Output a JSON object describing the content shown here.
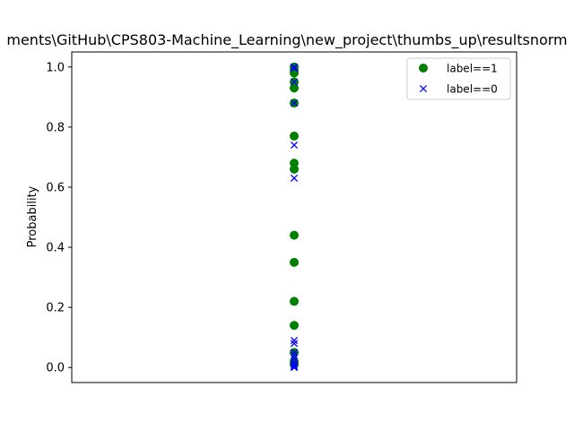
{
  "chart_data": {
    "type": "scatter",
    "title": "ments\\GitHub\\CPS803-Machine_Learning\\new_project\\thumbs_up\\resultsnorm",
    "xlabel": "",
    "ylabel": "Probability",
    "ylim": [
      -0.05,
      1.05
    ],
    "yticks": [
      "0.0",
      "0.2",
      "0.4",
      "0.6",
      "0.8",
      "1.0"
    ],
    "grid": false,
    "legend_position": "top-right",
    "series": [
      {
        "name": "label==1",
        "marker": "circle",
        "color": "#008000",
        "x": [
          0,
          0,
          0,
          0,
          0,
          0,
          0,
          0,
          0,
          0,
          0,
          0,
          0,
          0,
          0,
          0
        ],
        "y": [
          1.0,
          0.99,
          0.98,
          0.95,
          0.93,
          0.88,
          0.77,
          0.68,
          0.66,
          0.44,
          0.35,
          0.22,
          0.14,
          0.05,
          0.02,
          0.01
        ]
      },
      {
        "name": "label==0",
        "marker": "x",
        "color": "#0000ff",
        "x": [
          0,
          0,
          0,
          0,
          0,
          0,
          0,
          0,
          0,
          0,
          0,
          0,
          0,
          0,
          0,
          0
        ],
        "y": [
          1.0,
          0.995,
          0.95,
          0.88,
          0.74,
          0.63,
          0.09,
          0.08,
          0.05,
          0.04,
          0.03,
          0.02,
          0.01,
          0.005,
          0.002,
          0.0
        ]
      }
    ]
  }
}
